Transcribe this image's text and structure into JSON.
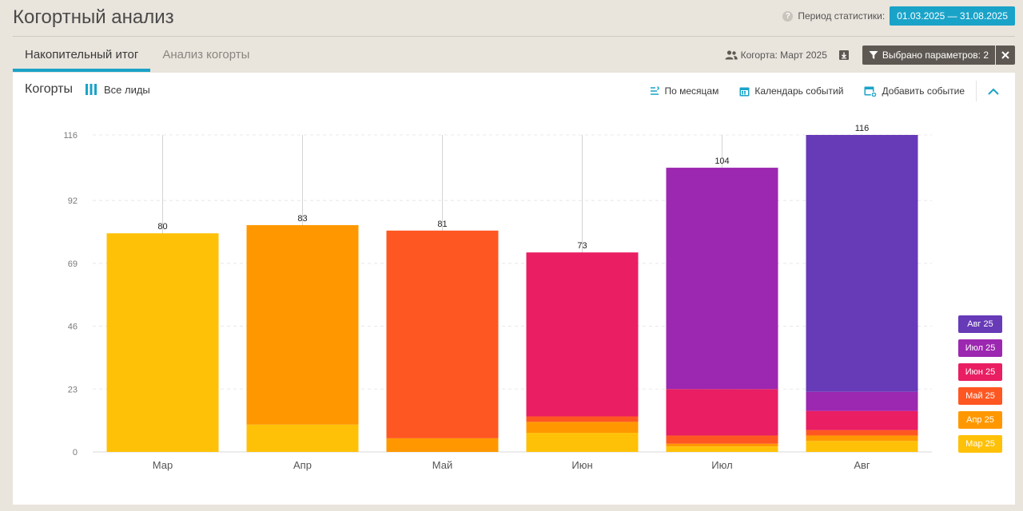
{
  "header": {
    "title": "Когортный анализ",
    "period_label": "Период статистики:",
    "period_range": "01.03.2025  —  31.08.2025"
  },
  "tabs": [
    {
      "label": "Накопительный итог",
      "active": true
    },
    {
      "label": "Анализ когорты",
      "active": false
    }
  ],
  "toolbar": {
    "cohort_label": "Когорта: Март 2025",
    "filter_label": "Выбрано параметров: 2"
  },
  "panel": {
    "title": "Когорты",
    "leads_label": "Все лиды",
    "actions": {
      "by_months": "По месяцам",
      "calendar": "Календарь событий",
      "add_event": "Добавить событие"
    }
  },
  "colors": {
    "accent": "#1aa3c8",
    "Мар 25": "#ffc107",
    "Апр 25": "#ff9800",
    "Май 25": "#ff5722",
    "Июн 25": "#e91e63",
    "Июл 25": "#9c27b0",
    "Авг 25": "#673ab7"
  },
  "icons": {
    "help": "question-circle-icon",
    "cohort": "users-icon",
    "download": "download-icon",
    "filter": "funnel-icon",
    "close": "close-icon",
    "leads": "bars-icon",
    "by_months": "sort-icon",
    "calendar": "calendar-icon",
    "add_event": "calendar-plus-icon",
    "collapse": "chevron-up-icon"
  },
  "chart_data": {
    "type": "bar",
    "stacked": true,
    "categories": [
      "Мар",
      "Апр",
      "Май",
      "Июн",
      "Июл",
      "Авг"
    ],
    "totals": [
      80,
      83,
      81,
      73,
      104,
      116
    ],
    "series": [
      {
        "name": "Мар 25",
        "values": [
          80,
          10,
          0,
          7,
          2,
          4
        ]
      },
      {
        "name": "Апр 25",
        "values": [
          0,
          73,
          5,
          4,
          1,
          2
        ]
      },
      {
        "name": "Май 25",
        "values": [
          0,
          0,
          76,
          2,
          3,
          2
        ]
      },
      {
        "name": "Июн 25",
        "values": [
          0,
          0,
          0,
          60,
          17,
          7
        ]
      },
      {
        "name": "Июл 25",
        "values": [
          0,
          0,
          0,
          0,
          81,
          7
        ]
      },
      {
        "name": "Авг 25",
        "values": [
          0,
          0,
          0,
          0,
          0,
          94
        ]
      }
    ],
    "yticks": [
      0,
      23,
      46,
      69,
      92,
      116
    ],
    "ylim": [
      0,
      116
    ],
    "grid": true,
    "legend": [
      "Авг 25",
      "Июл 25",
      "Июн 25",
      "Май 25",
      "Апр 25",
      "Мар 25"
    ],
    "legend_position": "right"
  }
}
